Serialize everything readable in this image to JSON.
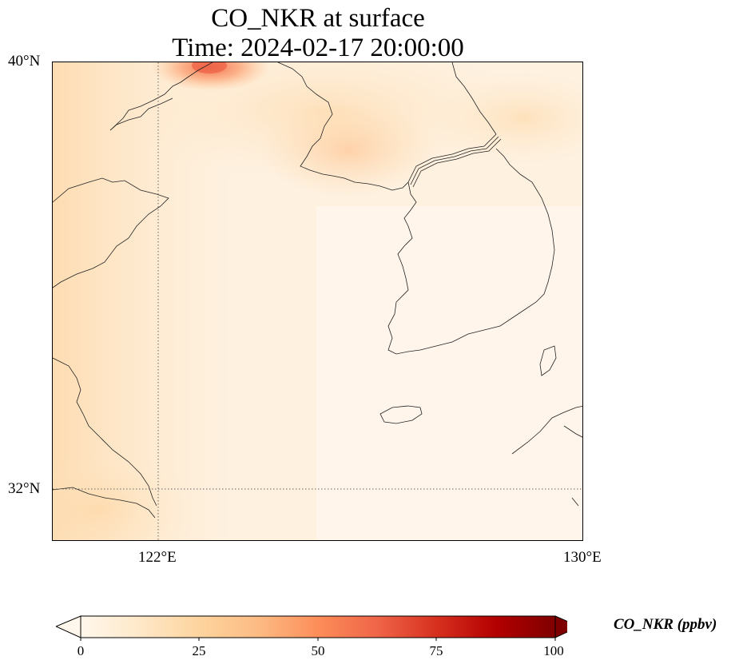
{
  "title": {
    "line1": "CO_NKR at surface",
    "line2": "Time: 2024-02-17 20:00:00"
  },
  "axes": {
    "lat_labels": [
      "40°N",
      "32°N"
    ],
    "lon_labels": [
      "122°E",
      "130°E"
    ],
    "extent": {
      "lon_min": 120,
      "lon_max": 130,
      "lat_min": 31,
      "lat_max": 40
    },
    "gridlines": {
      "lon": [
        122
      ],
      "lat": [
        32
      ],
      "style": "dotted"
    }
  },
  "colorbar": {
    "label": "CO_NKR (ppbv)",
    "ticks": [
      "0",
      "25",
      "50",
      "75",
      "100"
    ],
    "min": 0,
    "max": 100,
    "extend": "both",
    "colormap": "OrRd",
    "colors": [
      "#fff7ec",
      "#fee8c8",
      "#fdd49e",
      "#fdbb84",
      "#fc8d59",
      "#ef6548",
      "#d7301f",
      "#b30000",
      "#7f0000"
    ]
  },
  "field": {
    "variable": "CO_NKR",
    "level": "surface",
    "background_range_ppbv": [
      0,
      15
    ],
    "max_region": "Bohai Sea / Liaodong Peninsula coast near 123°E 40°N",
    "max_approx_ppbv": 45
  }
}
